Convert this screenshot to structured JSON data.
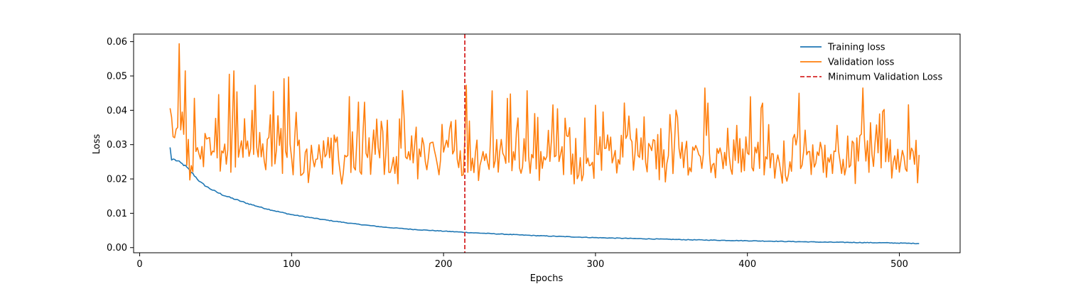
{
  "chart_data": {
    "type": "line",
    "title": "",
    "xlabel": "Epochs",
    "ylabel": "Loss",
    "xlim": [
      -4,
      540
    ],
    "ylim": [
      -0.0015,
      0.0622
    ],
    "xticks": [
      0,
      100,
      200,
      300,
      400,
      500
    ],
    "yticks": [
      0.0,
      0.01,
      0.02,
      0.03,
      0.04,
      0.05,
      0.06
    ],
    "ytick_labels": [
      "0.00",
      "0.01",
      "0.02",
      "0.03",
      "0.04",
      "0.05",
      "0.06"
    ],
    "grid": false,
    "legend_position": "top-right",
    "x_start": 20,
    "x_end": 513,
    "series": [
      {
        "name": "Training loss",
        "color": "#1f77b4",
        "style": "solid",
        "anchors": [
          [
            20,
            0.0292
          ],
          [
            21,
            0.0255
          ],
          [
            22,
            0.0258
          ],
          [
            25,
            0.0252
          ],
          [
            30,
            0.0238
          ],
          [
            35,
            0.0215
          ],
          [
            40,
            0.019
          ],
          [
            45,
            0.0175
          ],
          [
            50,
            0.0163
          ],
          [
            55,
            0.0153
          ],
          [
            60,
            0.0145
          ],
          [
            70,
            0.013
          ],
          [
            80,
            0.0117
          ],
          [
            90,
            0.0106
          ],
          [
            100,
            0.0096
          ],
          [
            120,
            0.0082
          ],
          [
            140,
            0.007
          ],
          [
            160,
            0.006
          ],
          [
            180,
            0.0053
          ],
          [
            200,
            0.0048
          ],
          [
            220,
            0.0043
          ],
          [
            240,
            0.0039
          ],
          [
            260,
            0.0035
          ],
          [
            280,
            0.0032
          ],
          [
            300,
            0.0029
          ],
          [
            330,
            0.0026
          ],
          [
            360,
            0.0023
          ],
          [
            400,
            0.002
          ],
          [
            450,
            0.0016
          ],
          [
            490,
            0.0014
          ],
          [
            513,
            0.0012
          ]
        ],
        "noise": 0.0005
      },
      {
        "name": "Validation loss",
        "color": "#ff7f0e",
        "style": "solid",
        "start_values": [
          0.0406,
          0.038,
          0.0323,
          0.032,
          0.0345,
          0.035,
          0.0594,
          0.0343,
          0.0395,
          0.033,
          0.0515
        ],
        "end_value": 0.027,
        "low": 0.0185,
        "high": 0.0475,
        "peaks": [
          [
            59,
            0.0505
          ],
          [
            62,
            0.0515
          ],
          [
            76,
            0.0473
          ],
          [
            88,
            0.0455
          ],
          [
            95,
            0.0492
          ],
          [
            98,
            0.0497
          ],
          [
            138,
            0.044
          ],
          [
            215,
            0.0473
          ],
          [
            372,
            0.0465
          ],
          [
            476,
            0.0465
          ]
        ]
      },
      {
        "name": "Minimum Validation Loss",
        "color": "#d62728",
        "style": "dashed",
        "x": 214
      }
    ]
  }
}
